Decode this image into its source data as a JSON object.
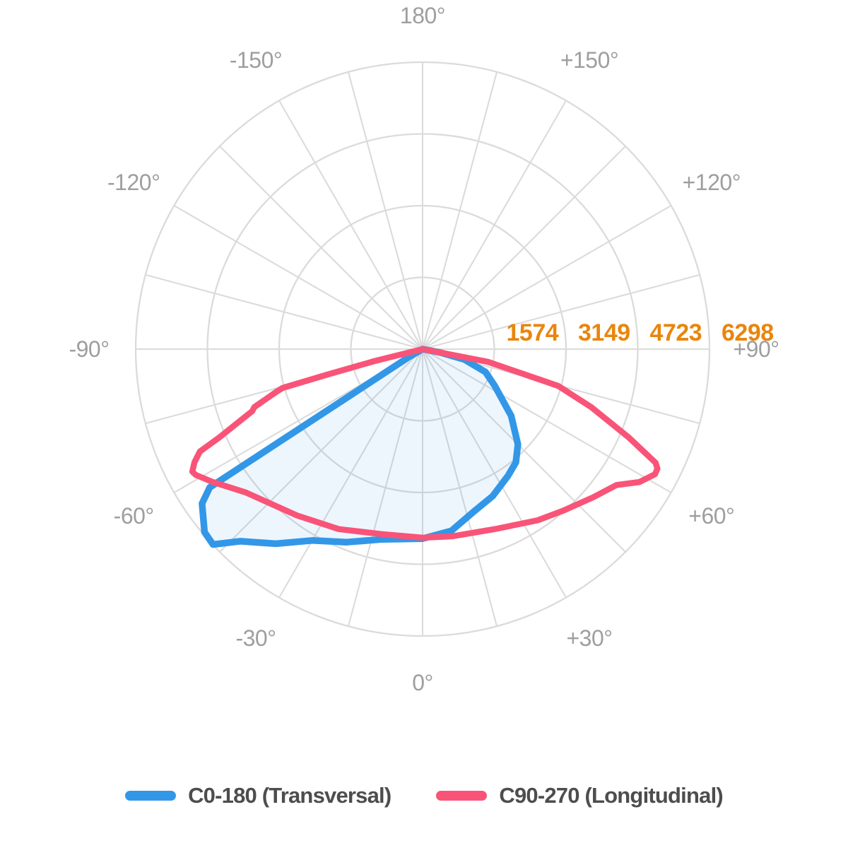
{
  "page": {
    "background": "#ffffff"
  },
  "legend": {
    "items": [
      {
        "label": "C0-180 (Transversal)",
        "color": "#3397e8"
      },
      {
        "label": "C90-270 (Longitudinal)",
        "color": "#f95478"
      }
    ]
  },
  "chart_data": {
    "type": "line",
    "subtype": "polar-photometric-distribution",
    "title": "",
    "units": "cd",
    "rmax": 6298,
    "rings": 4,
    "spoke_step_deg": 15,
    "angle_label_step_deg": 30,
    "grid_color": "#dbdbdb",
    "angle_label_color": "#9e9e9e",
    "radial_tick_color": "#e8860d",
    "radial_ticks": [
      "1574",
      "3149",
      "4723",
      "6298"
    ],
    "angle_ticks": [
      {
        "angle": 180,
        "label": "180°"
      },
      {
        "angle": -150,
        "label": "-150°"
      },
      {
        "angle": 150,
        "label": "+150°"
      },
      {
        "angle": -120,
        "label": "-120°"
      },
      {
        "angle": 120,
        "label": "+120°"
      },
      {
        "angle": -90,
        "label": "-90°"
      },
      {
        "angle": 90,
        "label": "+90°"
      },
      {
        "angle": -60,
        "label": "-60°"
      },
      {
        "angle": 60,
        "label": "+60°"
      },
      {
        "angle": -30,
        "label": "-30°"
      },
      {
        "angle": 30,
        "label": "+30°"
      },
      {
        "angle": 0,
        "label": "0°"
      }
    ],
    "series": [
      {
        "name": "C0-180 (Transversal)",
        "color": "#3397e8",
        "fill": "rgba(52,152,232,0.09)",
        "stroke_width": 9.5,
        "points": [
          [
            -90,
            0
          ],
          [
            -60,
            350
          ],
          [
            -57,
            5570
          ],
          [
            -55,
            5910
          ],
          [
            -50,
            6250
          ],
          [
            -47,
            6290
          ],
          [
            -43.5,
            5815
          ],
          [
            -37,
            5350
          ],
          [
            -30,
            4850
          ],
          [
            -21.5,
            4555
          ],
          [
            -12,
            4270
          ],
          [
            0,
            4160
          ],
          [
            9,
            4040
          ],
          [
            17.5,
            3740
          ],
          [
            25.5,
            3575
          ],
          [
            34,
            3355
          ],
          [
            39.5,
            3220
          ],
          [
            45,
            2960
          ],
          [
            53,
            2435
          ],
          [
            63,
            1780
          ],
          [
            70,
            1470
          ],
          [
            76,
            945
          ],
          [
            79,
            400
          ],
          [
            90,
            0
          ]
        ]
      },
      {
        "name": "C90-270 (Longitudinal)",
        "color": "#f95478",
        "fill": "none",
        "stroke_width": 8.5,
        "points": [
          [
            -90,
            0
          ],
          [
            -76,
            1090
          ],
          [
            -75,
            2215
          ],
          [
            -74.5,
            3190
          ],
          [
            -73.8,
            3330
          ],
          [
            -71,
            3905
          ],
          [
            -70,
            3980
          ],
          [
            -66.5,
            4870
          ],
          [
            -65.3,
            5380
          ],
          [
            -63.6,
            5590
          ],
          [
            -62,
            5725
          ],
          [
            -61,
            5695
          ],
          [
            -57.8,
            5465
          ],
          [
            -51,
            5000
          ],
          [
            -37,
            4575
          ],
          [
            -25,
            4360
          ],
          [
            -12.5,
            4160
          ],
          [
            0,
            4140
          ],
          [
            9,
            4160
          ],
          [
            22,
            4260
          ],
          [
            34,
            4530
          ],
          [
            41,
            4700
          ],
          [
            49,
            4960
          ],
          [
            55,
            5200
          ],
          [
            58.5,
            5585
          ],
          [
            61.7,
            5795
          ],
          [
            63,
            5785
          ],
          [
            64,
            5690
          ],
          [
            66.8,
            4925
          ],
          [
            71,
            3920
          ],
          [
            74.8,
            3085
          ],
          [
            79,
            1455
          ],
          [
            90,
            0
          ]
        ]
      }
    ]
  }
}
